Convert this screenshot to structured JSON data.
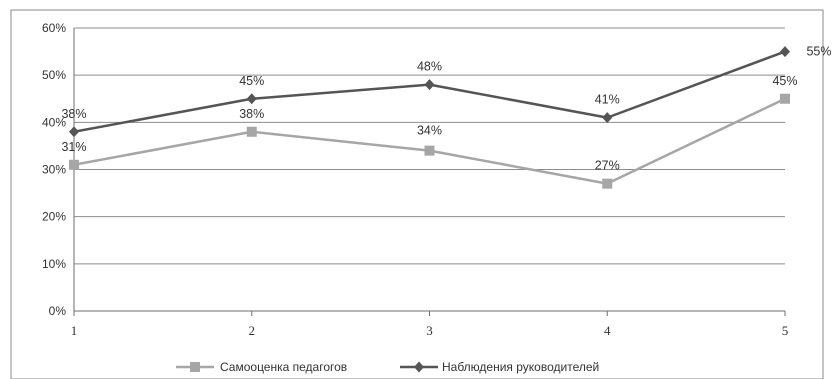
{
  "chart_data": {
    "type": "line",
    "title": "",
    "xlabel": "",
    "ylabel": "",
    "x": [
      "1",
      "2",
      "3",
      "4",
      "5"
    ],
    "ylim": [
      0,
      60
    ],
    "yticks": [
      0,
      10,
      20,
      30,
      40,
      50,
      60
    ],
    "ytick_labels": [
      "0%",
      "10%",
      "20%",
      "30%",
      "40%",
      "50%",
      "60%"
    ],
    "grid": true,
    "legend_position": "bottom",
    "series": [
      {
        "name": "Самооценка педагогов",
        "marker": "square",
        "color": "#a6a6a6",
        "values": [
          31,
          38,
          34,
          27,
          45
        ],
        "labels": [
          "31%",
          "38%",
          "34%",
          "27%",
          "45%"
        ]
      },
      {
        "name": "Наблюдения руководителей",
        "marker": "diamond",
        "color": "#555555",
        "values": [
          38,
          45,
          48,
          41,
          55
        ],
        "labels": [
          "38%",
          "45%",
          "48%",
          "41%",
          "55%"
        ]
      }
    ]
  }
}
